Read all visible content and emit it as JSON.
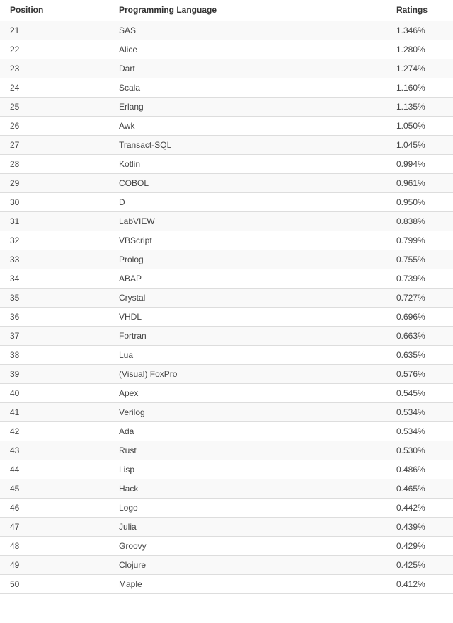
{
  "table": {
    "headers": {
      "position": "Position",
      "language": "Programming Language",
      "ratings": "Ratings"
    },
    "rows": [
      {
        "position": "21",
        "language": "SAS",
        "rating": "1.346%"
      },
      {
        "position": "22",
        "language": "Alice",
        "rating": "1.280%"
      },
      {
        "position": "23",
        "language": "Dart",
        "rating": "1.274%"
      },
      {
        "position": "24",
        "language": "Scala",
        "rating": "1.160%"
      },
      {
        "position": "25",
        "language": "Erlang",
        "rating": "1.135%"
      },
      {
        "position": "26",
        "language": "Awk",
        "rating": "1.050%"
      },
      {
        "position": "27",
        "language": "Transact-SQL",
        "rating": "1.045%"
      },
      {
        "position": "28",
        "language": "Kotlin",
        "rating": "0.994%"
      },
      {
        "position": "29",
        "language": "COBOL",
        "rating": "0.961%"
      },
      {
        "position": "30",
        "language": "D",
        "rating": "0.950%"
      },
      {
        "position": "31",
        "language": "LabVIEW",
        "rating": "0.838%"
      },
      {
        "position": "32",
        "language": "VBScript",
        "rating": "0.799%"
      },
      {
        "position": "33",
        "language": "Prolog",
        "rating": "0.755%"
      },
      {
        "position": "34",
        "language": "ABAP",
        "rating": "0.739%"
      },
      {
        "position": "35",
        "language": "Crystal",
        "rating": "0.727%"
      },
      {
        "position": "36",
        "language": "VHDL",
        "rating": "0.696%"
      },
      {
        "position": "37",
        "language": "Fortran",
        "rating": "0.663%"
      },
      {
        "position": "38",
        "language": "Lua",
        "rating": "0.635%"
      },
      {
        "position": "39",
        "language": "(Visual) FoxPro",
        "rating": "0.576%"
      },
      {
        "position": "40",
        "language": "Apex",
        "rating": "0.545%"
      },
      {
        "position": "41",
        "language": "Verilog",
        "rating": "0.534%"
      },
      {
        "position": "42",
        "language": "Ada",
        "rating": "0.534%"
      },
      {
        "position": "43",
        "language": "Rust",
        "rating": "0.530%"
      },
      {
        "position": "44",
        "language": "Lisp",
        "rating": "0.486%"
      },
      {
        "position": "45",
        "language": "Hack",
        "rating": "0.465%"
      },
      {
        "position": "46",
        "language": "Logo",
        "rating": "0.442%"
      },
      {
        "position": "47",
        "language": "Julia",
        "rating": "0.439%"
      },
      {
        "position": "48",
        "language": "Groovy",
        "rating": "0.429%"
      },
      {
        "position": "49",
        "language": "Clojure",
        "rating": "0.425%"
      },
      {
        "position": "50",
        "language": "Maple",
        "rating": "0.412%"
      }
    ]
  }
}
